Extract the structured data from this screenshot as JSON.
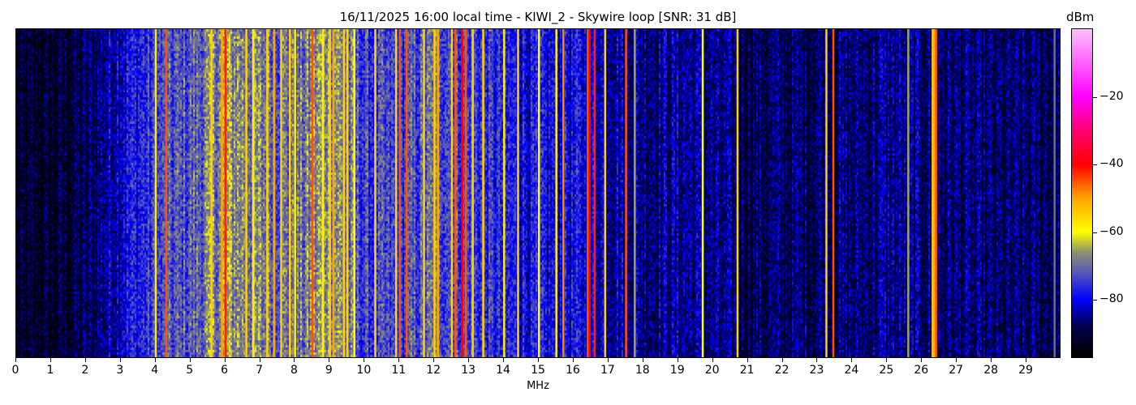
{
  "chart_data": {
    "type": "heatmap",
    "title": "16/11/2025 16:00 local time - KIWI_2 - Skywire loop [SNR: 31 dB]",
    "xlabel": "MHz",
    "xlim": [
      0,
      30
    ],
    "xticks": [
      "0",
      "1",
      "2",
      "3",
      "4",
      "5",
      "6",
      "7",
      "8",
      "9",
      "10",
      "11",
      "12",
      "13",
      "14",
      "15",
      "16",
      "17",
      "18",
      "19",
      "20",
      "21",
      "22",
      "23",
      "24",
      "25",
      "26",
      "27",
      "28",
      "29"
    ],
    "colorbar": {
      "label": "dBm",
      "range": [
        -97,
        0
      ],
      "ticks": [
        "−20",
        "−40",
        "−60",
        "−80"
      ],
      "tick_values": [
        -20,
        -40,
        -60,
        -80
      ],
      "colormap": [
        {
          "v": -97,
          "c": "#000000"
        },
        {
          "v": -88,
          "c": "#00004a"
        },
        {
          "v": -80,
          "c": "#0000ff"
        },
        {
          "v": -72,
          "c": "#5858b8"
        },
        {
          "v": -66,
          "c": "#8f8f70"
        },
        {
          "v": -60,
          "c": "#ffff00"
        },
        {
          "v": -50,
          "c": "#ffa500"
        },
        {
          "v": -40,
          "c": "#ff0000"
        },
        {
          "v": -30,
          "c": "#ff0070"
        },
        {
          "v": -20,
          "c": "#ff00ff"
        },
        {
          "v": 0,
          "c": "#ffc0ff"
        }
      ]
    },
    "noise_floor_dbm_per_mhz": [
      -93,
      -92,
      -89,
      -80,
      -75,
      -72,
      -66,
      -69,
      -71,
      -65,
      -75,
      -75,
      -71,
      -74,
      -78,
      -80,
      -80,
      -82,
      -85,
      -84,
      -86,
      -88,
      -88,
      -87,
      -87,
      -85,
      -86,
      -87,
      -88,
      -88
    ],
    "signals": [
      {
        "freq": 4.0,
        "level": -58
      },
      {
        "freq": 4.3,
        "level": -45
      },
      {
        "freq": 5.6,
        "level": -55
      },
      {
        "freq": 5.9,
        "level": -50
      },
      {
        "freq": 6.0,
        "level": -42
      },
      {
        "freq": 6.6,
        "level": -55
      },
      {
        "freq": 6.8,
        "level": -58
      },
      {
        "freq": 7.2,
        "level": -55
      },
      {
        "freq": 7.4,
        "level": -50
      },
      {
        "freq": 7.6,
        "level": -55
      },
      {
        "freq": 7.85,
        "level": -55
      },
      {
        "freq": 8.0,
        "level": -58
      },
      {
        "freq": 8.5,
        "level": -45
      },
      {
        "freq": 8.8,
        "level": -58
      },
      {
        "freq": 9.0,
        "level": -55
      },
      {
        "freq": 9.1,
        "level": -50
      },
      {
        "freq": 9.4,
        "level": -55
      },
      {
        "freq": 9.5,
        "level": -55
      },
      {
        "freq": 9.7,
        "level": -60
      },
      {
        "freq": 10.3,
        "level": -55
      },
      {
        "freq": 10.9,
        "level": -55
      },
      {
        "freq": 11.0,
        "level": -45
      },
      {
        "freq": 11.2,
        "level": -45
      },
      {
        "freq": 11.7,
        "level": -55
      },
      {
        "freq": 12.0,
        "level": -55
      },
      {
        "freq": 12.1,
        "level": -50
      },
      {
        "freq": 12.5,
        "level": -55
      },
      {
        "freq": 12.6,
        "level": -45
      },
      {
        "freq": 12.8,
        "level": -40
      },
      {
        "freq": 12.9,
        "level": -45
      },
      {
        "freq": 13.1,
        "level": -55
      },
      {
        "freq": 13.4,
        "level": -55
      },
      {
        "freq": 14.0,
        "level": -58
      },
      {
        "freq": 14.4,
        "level": -55
      },
      {
        "freq": 15.0,
        "level": -60
      },
      {
        "freq": 15.5,
        "level": -58
      },
      {
        "freq": 15.7,
        "level": -48
      },
      {
        "freq": 16.4,
        "level": -45
      },
      {
        "freq": 16.45,
        "level": -40
      },
      {
        "freq": 16.6,
        "level": -42
      },
      {
        "freq": 16.9,
        "level": -55
      },
      {
        "freq": 17.5,
        "level": -45
      },
      {
        "freq": 17.75,
        "level": -65
      },
      {
        "freq": 19.7,
        "level": -60
      },
      {
        "freq": 20.7,
        "level": -55
      },
      {
        "freq": 23.25,
        "level": -55
      },
      {
        "freq": 23.45,
        "level": -45
      },
      {
        "freq": 25.6,
        "level": -65
      },
      {
        "freq": 26.3,
        "level": -55
      },
      {
        "freq": 26.35,
        "level": -50
      },
      {
        "freq": 26.4,
        "level": -45
      },
      {
        "freq": 29.8,
        "level": -70
      }
    ]
  }
}
